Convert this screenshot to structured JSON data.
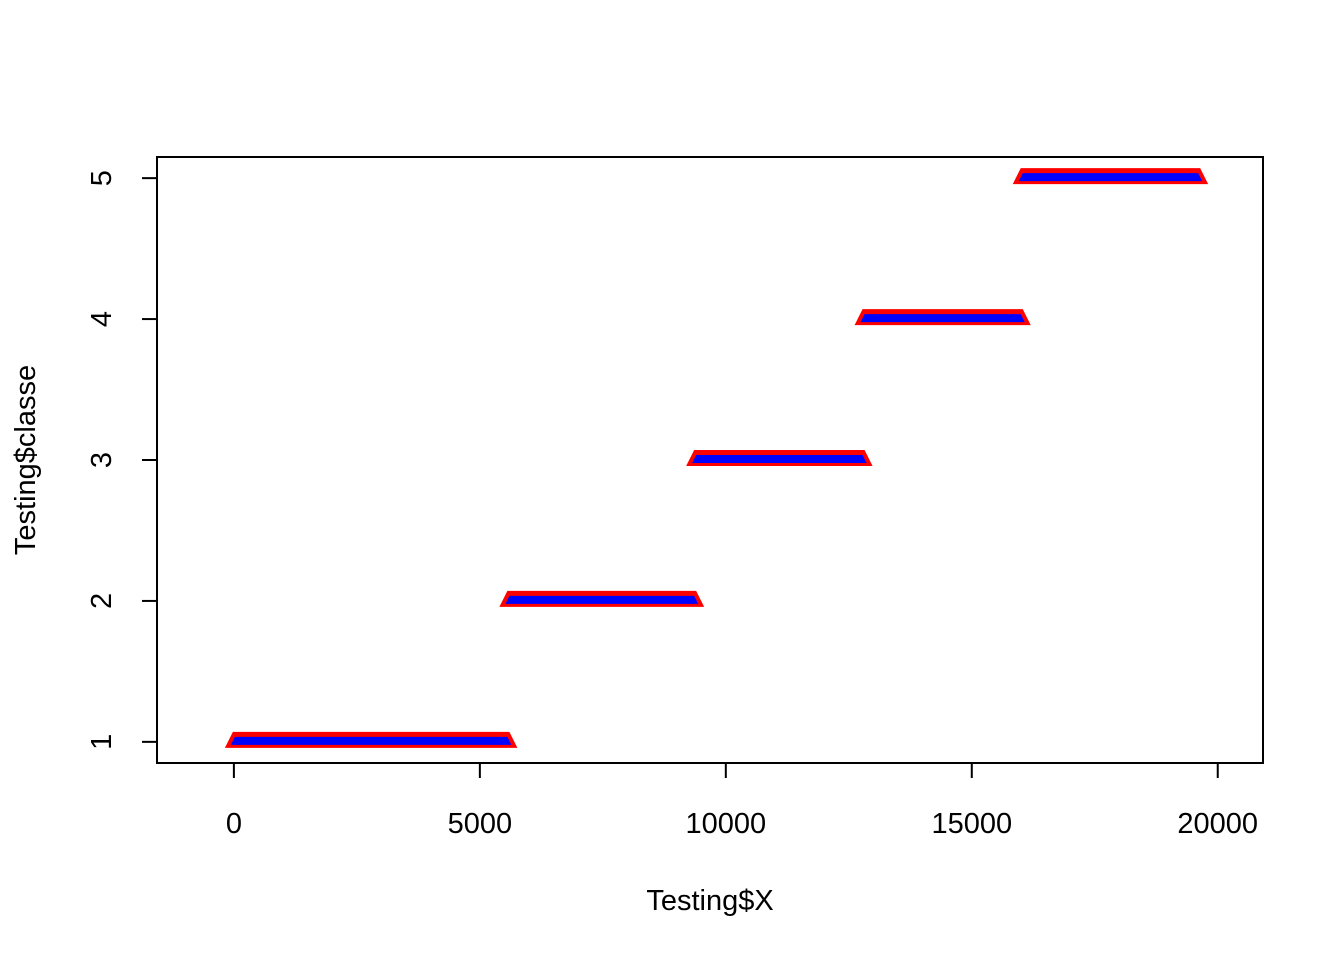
{
  "chart_data": {
    "type": "scatter",
    "title": "",
    "xlabel": "Testing$X",
    "ylabel": "Testing$classe",
    "xlim": [
      -1563,
      20920
    ],
    "ylim": [
      0.85,
      5.15
    ],
    "x_ticks": [
      {
        "value": 0,
        "label": "0"
      },
      {
        "value": 5000,
        "label": "5000"
      },
      {
        "value": 10000,
        "label": "10000"
      },
      {
        "value": 15000,
        "label": "15000"
      },
      {
        "value": 20000,
        "label": "20000"
      }
    ],
    "y_ticks": [
      {
        "value": 1,
        "label": "1"
      },
      {
        "value": 2,
        "label": "2"
      },
      {
        "value": 3,
        "label": "3"
      },
      {
        "value": 4,
        "label": "4"
      },
      {
        "value": 5,
        "label": "5"
      }
    ],
    "grid": false,
    "series": [
      {
        "outline_color": "#ff0000",
        "fill_color": "#0000ff",
        "points": [
          {
            "x_start": 0,
            "x_end": 5580,
            "y": 1
          },
          {
            "x_start": 5580,
            "x_end": 9377,
            "y": 2
          },
          {
            "x_start": 9377,
            "x_end": 12800,
            "y": 3
          },
          {
            "x_start": 12800,
            "x_end": 16016,
            "y": 4
          },
          {
            "x_start": 16016,
            "x_end": 19622,
            "y": 5
          }
        ]
      }
    ]
  }
}
